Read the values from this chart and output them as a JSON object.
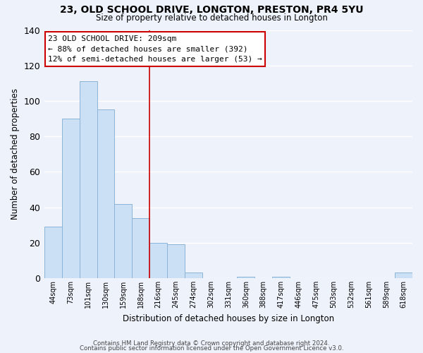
{
  "title": "23, OLD SCHOOL DRIVE, LONGTON, PRESTON, PR4 5YU",
  "subtitle": "Size of property relative to detached houses in Longton",
  "xlabel": "Distribution of detached houses by size in Longton",
  "ylabel": "Number of detached properties",
  "bar_color": "#cce0f5",
  "bar_edge_color": "#8ab4d8",
  "bg_color": "#eef2fb",
  "grid_color": "#ffffff",
  "categories": [
    "44sqm",
    "73sqm",
    "101sqm",
    "130sqm",
    "159sqm",
    "188sqm",
    "216sqm",
    "245sqm",
    "274sqm",
    "302sqm",
    "331sqm",
    "360sqm",
    "388sqm",
    "417sqm",
    "446sqm",
    "475sqm",
    "503sqm",
    "532sqm",
    "561sqm",
    "589sqm",
    "618sqm"
  ],
  "values": [
    29,
    90,
    111,
    95,
    42,
    34,
    20,
    19,
    3,
    0,
    0,
    1,
    0,
    1,
    0,
    0,
    0,
    0,
    0,
    0,
    3
  ],
  "ylim": [
    0,
    140
  ],
  "yticks": [
    0,
    20,
    40,
    60,
    80,
    100,
    120,
    140
  ],
  "vline_x_idx": 5.5,
  "vline_color": "#cc0000",
  "annotation_title": "23 OLD SCHOOL DRIVE: 209sqm",
  "annotation_line1": "← 88% of detached houses are smaller (392)",
  "annotation_line2": "12% of semi-detached houses are larger (53) →",
  "annotation_box_color": "#ffffff",
  "annotation_box_edge": "#cc0000",
  "footer1": "Contains HM Land Registry data © Crown copyright and database right 2024.",
  "footer2": "Contains public sector information licensed under the Open Government Licence v3.0."
}
